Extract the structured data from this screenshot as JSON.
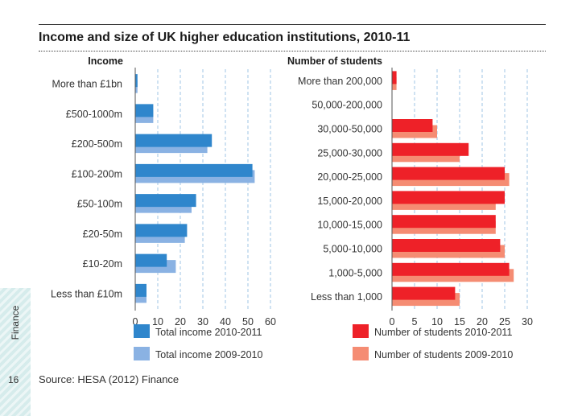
{
  "title": "Income and size of UK higher education institutions, 2010-11",
  "sidebar": {
    "label": "Finance",
    "page_number": "16"
  },
  "source": "Source: HESA (2012) Finance",
  "colors": {
    "income_2011": "#2f86cc",
    "income_2010": "#8ab2e3",
    "students_2011": "#ee2128",
    "students_2010": "#f58c73",
    "grid": "#9fc6e6"
  },
  "chart_data": [
    {
      "type": "bar",
      "orientation": "horizontal",
      "title": "Income",
      "categories": [
        "More than £1bn",
        "£500-1000m",
        "£200-500m",
        "£100-200m",
        "£50-100m",
        "£20-50m",
        "£10-20m",
        "Less than £10m"
      ],
      "series": [
        {
          "name": "Total income 2010-2011",
          "values": [
            1,
            8,
            34,
            52,
            27,
            23,
            14,
            5
          ]
        },
        {
          "name": "Total income 2009-2010",
          "values": [
            1,
            8,
            32,
            53,
            25,
            22,
            18,
            5
          ]
        }
      ],
      "xlim": [
        0,
        60
      ],
      "xticks": [
        0,
        10,
        20,
        30,
        40,
        50,
        60
      ],
      "grid": true,
      "legend": "bottom"
    },
    {
      "type": "bar",
      "orientation": "horizontal",
      "title": "Number of students",
      "categories": [
        "More than 200,000",
        "50,000-200,000",
        "30,000-50,000",
        "25,000-30,000",
        "20,000-25,000",
        "15,000-20,000",
        "10,000-15,000",
        "5,000-10,000",
        "1,000-5,000",
        "Less than 1,000"
      ],
      "series": [
        {
          "name": "Number of students 2010-2011",
          "values": [
            1,
            0,
            9,
            17,
            25,
            25,
            23,
            24,
            26,
            14
          ]
        },
        {
          "name": "Number of students 2009-2010",
          "values": [
            1,
            0,
            10,
            15,
            26,
            23,
            23,
            25,
            27,
            15
          ]
        }
      ],
      "xlim": [
        0,
        30
      ],
      "xticks": [
        0,
        5,
        10,
        15,
        20,
        25,
        30
      ],
      "grid": true,
      "legend": "bottom"
    }
  ]
}
